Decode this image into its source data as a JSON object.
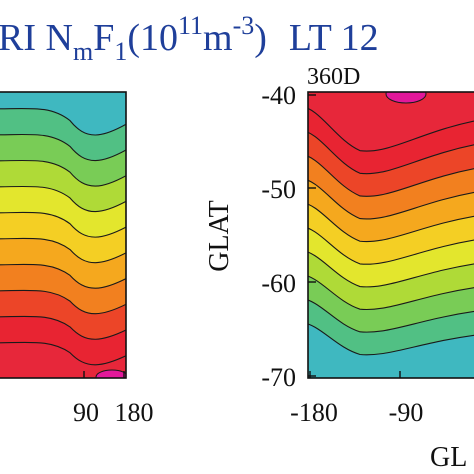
{
  "title": {
    "prefix": "RI N",
    "sub1": "m",
    "mid": "F",
    "sub2": "1",
    "paren_open": "(10",
    "sup1": "11",
    "unit": "m",
    "sup2": "-3",
    "paren_close": ")",
    "lt": "LT 12"
  },
  "chart_data": [
    {
      "type": "contour",
      "panel_label": "",
      "x_ticks": [
        "90",
        "180"
      ],
      "y_ticks": [],
      "xlabel": "",
      "ylabel": "",
      "colors": {
        "band_low": "#3fb8c0",
        "band_mid": "#f2ea2a",
        "band_high": "#e8222e",
        "band_peak": "#e2189a"
      }
    },
    {
      "type": "contour",
      "panel_label": "360D",
      "x_ticks": [
        "-180",
        "-90"
      ],
      "y_ticks": [
        "-40",
        "-50",
        "-60",
        "-70"
      ],
      "ylim": [
        -70,
        -40
      ],
      "xlabel": "GL",
      "ylabel": "GLAT",
      "colors": {
        "band_low": "#3fb8c0",
        "band_mid": "#f2ea2a",
        "band_high": "#e8222e",
        "band_peak": "#e2189a"
      }
    }
  ]
}
